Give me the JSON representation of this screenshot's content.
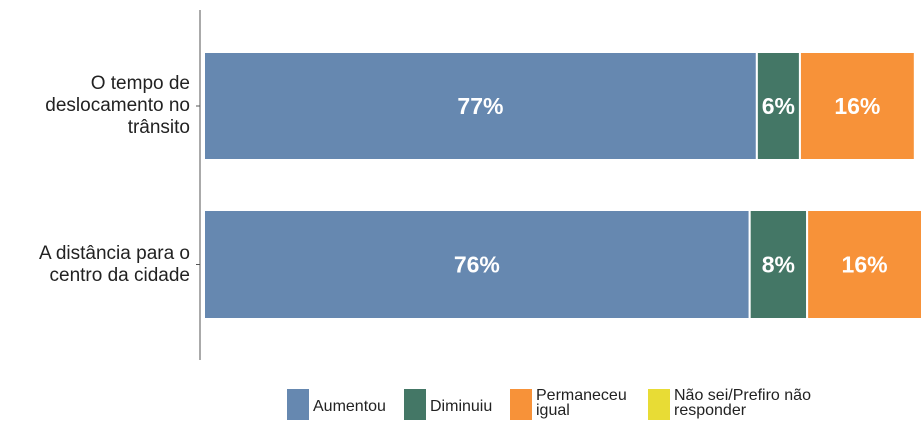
{
  "chart_data": {
    "type": "bar",
    "orientation": "horizontal",
    "stacked": true,
    "categories": [
      "O tempo de\ndeslocamento no\ntrânsito",
      "A distância para o\ncentro da cidade"
    ],
    "xlim": [
      0,
      100
    ],
    "series": [
      {
        "name": "Aumentou",
        "color": "#6688b0",
        "values": [
          77,
          76
        ],
        "value_labels": [
          "77%",
          "76%"
        ]
      },
      {
        "name": "Diminuiu",
        "color": "#447766",
        "values": [
          6,
          8
        ],
        "value_labels": [
          "6%",
          "8%"
        ]
      },
      {
        "name": "Permaneceu igual",
        "color": "#f79239",
        "values": [
          16,
          16
        ],
        "value_labels": [
          "16%",
          "16%"
        ]
      },
      {
        "name": "Não sei/Prefiro não responder",
        "color": "#e8dc35",
        "values": [
          0,
          0
        ]
      }
    ],
    "legend": "bottom"
  }
}
